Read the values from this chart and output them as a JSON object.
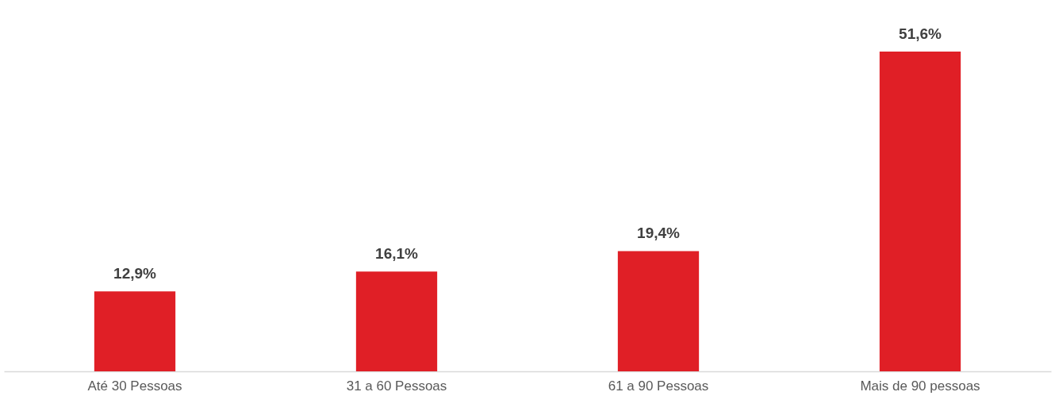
{
  "chart_data": {
    "type": "bar",
    "categories": [
      "Até 30 Pessoas",
      "31 a 60 Pessoas",
      "61 a 90 Pessoas",
      "Mais de 90 pessoas"
    ],
    "values": [
      12.9,
      16.1,
      19.4,
      51.6
    ],
    "color": "#e01f26",
    "value_labels": [
      "12,9%",
      "16,1%",
      "19,4%",
      "51,6%"
    ],
    "grid": false
  }
}
